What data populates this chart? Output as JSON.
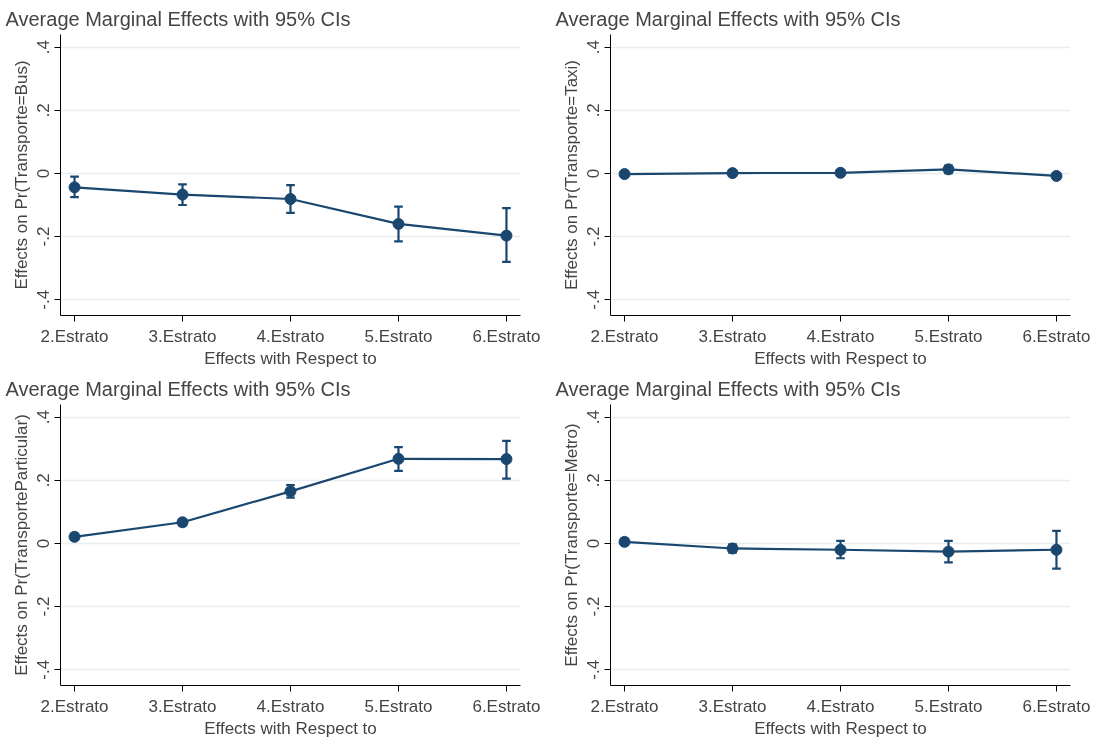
{
  "chart_data": [
    {
      "type": "line",
      "title": "Average Marginal Effects with 95% CIs",
      "xlabel": "Effects with Respect to",
      "ylabel": "Effects on Pr(Transporte=Bus)",
      "categories": [
        "2.Estrato",
        "3.Estrato",
        "4.Estrato",
        "5.Estrato",
        "6.Estrato"
      ],
      "series": [
        {
          "color": "#1a476f",
          "values": [
            -0.044,
            -0.067,
            -0.081,
            -0.16,
            -0.197
          ],
          "errors": [
            [
              -0.075,
              -0.01
            ],
            [
              -0.1,
              -0.035
            ],
            [
              -0.125,
              -0.037
            ],
            [
              -0.215,
              -0.105
            ],
            [
              -0.28,
              -0.11
            ]
          ]
        }
      ],
      "ylim": [
        -0.45,
        0.44
      ],
      "yticks": [
        {
          "value": -0.4,
          "label": "-.4"
        },
        {
          "value": -0.2,
          "label": "-.2"
        },
        0,
        {
          "value": 0.2,
          "label": ".2"
        },
        {
          "value": 0.4,
          "label": ".4"
        }
      ],
      "grid": "y",
      "marker": "circle",
      "line_style": "solid"
    },
    {
      "type": "line",
      "title": "Average Marginal Effects with 95% CIs",
      "xlabel": "Effects with Respect to",
      "ylabel": "Effects on Pr(Transporte=Taxi)",
      "categories": [
        "2.Estrato",
        "3.Estrato",
        "4.Estrato",
        "5.Estrato",
        "6.Estrato"
      ],
      "series": [
        {
          "color": "#1a476f",
          "values": [
            -0.002,
            0.001,
            0.002,
            0.013,
            -0.008
          ],
          "errors": [
            [
              -0.01,
              0.006
            ],
            [
              -0.006,
              0.008
            ],
            [
              -0.007,
              0.011
            ],
            [
              0.001,
              0.025
            ],
            [
              -0.017,
              0.001
            ]
          ]
        }
      ],
      "ylim": [
        -0.45,
        0.44
      ],
      "yticks": [
        {
          "value": -0.4,
          "label": "-.4"
        },
        {
          "value": -0.2,
          "label": "-.2"
        },
        0,
        {
          "value": 0.2,
          "label": ".2"
        },
        {
          "value": 0.4,
          "label": ".4"
        }
      ],
      "grid": "y",
      "marker": "circle",
      "line_style": "solid"
    },
    {
      "type": "line",
      "title": "Average Marginal Effects with 95% CIs",
      "xlabel": "Effects with Respect to",
      "ylabel": "Effects on Pr(TransporteParticular)",
      "categories": [
        "2.Estrato",
        "3.Estrato",
        "4.Estrato",
        "5.Estrato",
        "6.Estrato"
      ],
      "series": [
        {
          "color": "#1a476f",
          "values": [
            0.021,
            0.067,
            0.165,
            0.268,
            0.267
          ],
          "errors": [
            [
              0.011,
              0.031
            ],
            [
              0.057,
              0.077
            ],
            [
              0.145,
              0.185
            ],
            [
              0.23,
              0.305
            ],
            [
              0.205,
              0.325
            ]
          ]
        }
      ],
      "ylim": [
        -0.45,
        0.44
      ],
      "yticks": [
        {
          "value": -0.4,
          "label": "-.4"
        },
        {
          "value": -0.2,
          "label": "-.2"
        },
        0,
        {
          "value": 0.2,
          "label": ".2"
        },
        {
          "value": 0.4,
          "label": ".4"
        }
      ],
      "grid": "y",
      "marker": "circle",
      "line_style": "solid"
    },
    {
      "type": "line",
      "title": "Average Marginal Effects with 95% CIs",
      "xlabel": "Effects with Respect to",
      "ylabel": "Effects on Pr(Transporte=Metro)",
      "categories": [
        "2.Estrato",
        "3.Estrato",
        "4.Estrato",
        "5.Estrato",
        "6.Estrato"
      ],
      "series": [
        {
          "color": "#1a476f",
          "values": [
            0.005,
            -0.016,
            -0.02,
            -0.026,
            -0.02
          ],
          "errors": [
            [
              -0.005,
              0.015
            ],
            [
              -0.029,
              -0.003
            ],
            [
              -0.047,
              0.008
            ],
            [
              -0.06,
              0.008
            ],
            [
              -0.08,
              0.04
            ]
          ]
        }
      ],
      "ylim": [
        -0.45,
        0.44
      ],
      "yticks": [
        {
          "value": -0.4,
          "label": "-.4"
        },
        {
          "value": -0.2,
          "label": "-.2"
        },
        0,
        {
          "value": 0.2,
          "label": ".2"
        },
        {
          "value": 0.4,
          "label": ".4"
        }
      ],
      "grid": "y",
      "marker": "circle",
      "line_style": "solid"
    }
  ]
}
